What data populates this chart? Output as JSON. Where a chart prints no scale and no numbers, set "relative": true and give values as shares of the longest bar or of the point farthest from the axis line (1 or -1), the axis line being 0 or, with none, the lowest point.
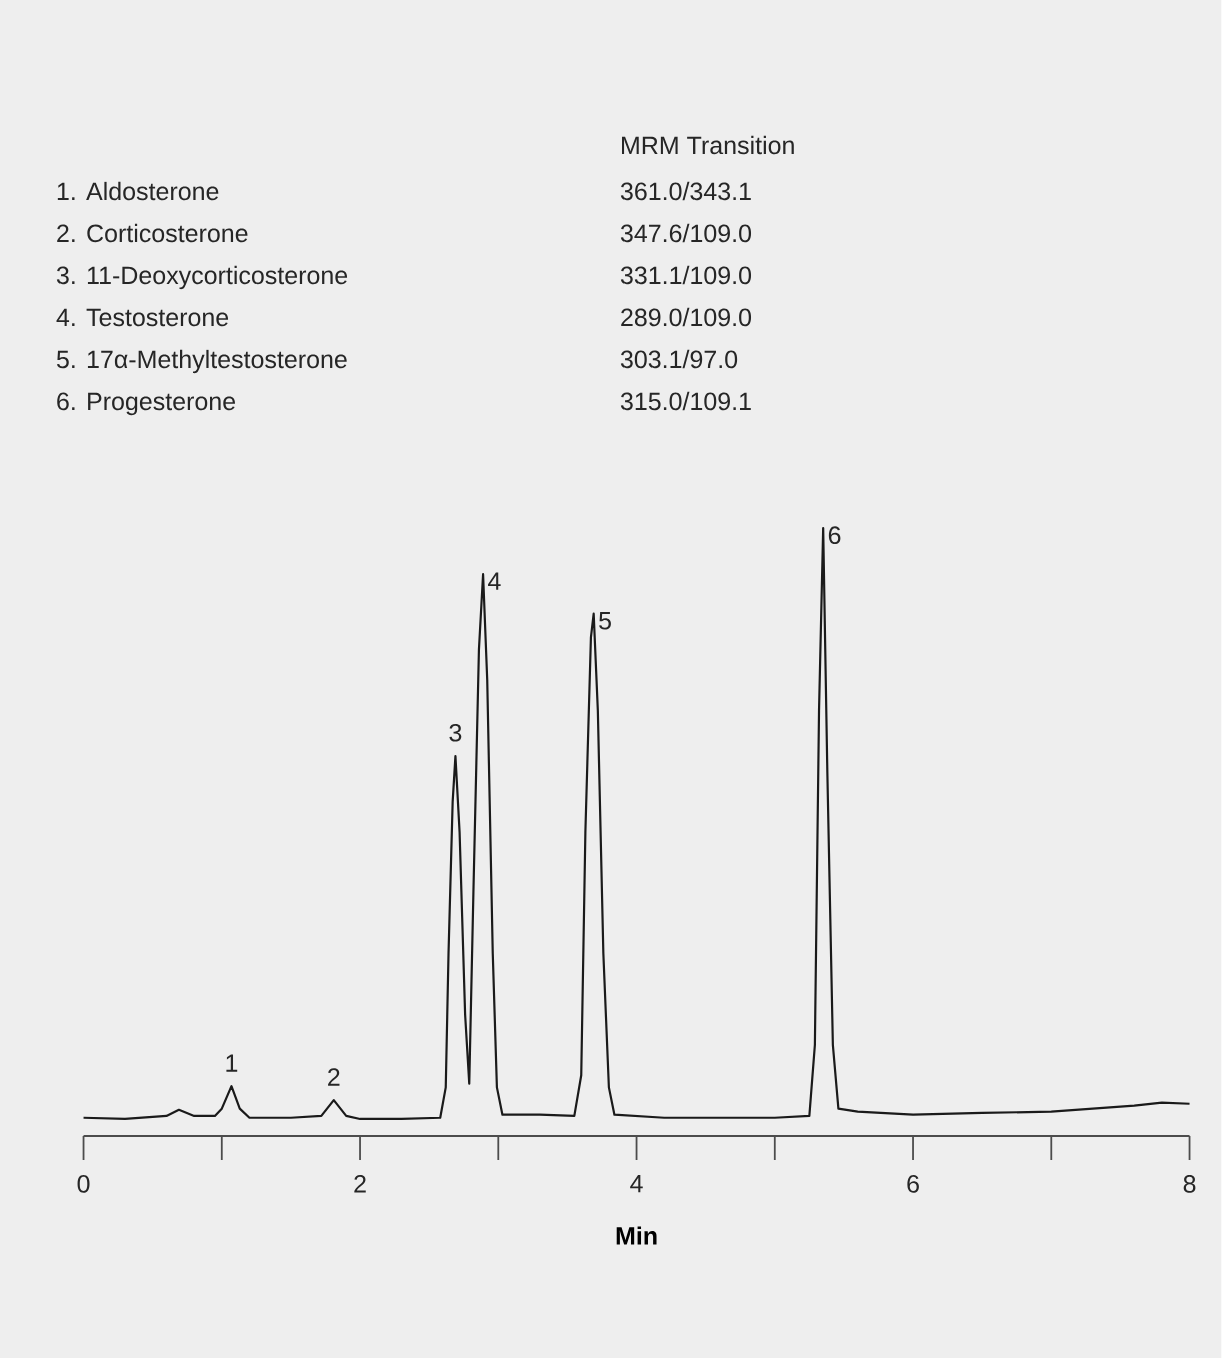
{
  "chart_data": {
    "type": "line",
    "relative": true,
    "xlabel": "Min",
    "xlim": [
      0,
      8
    ],
    "xticks": [
      0,
      {
        "value": 1,
        "label": null
      },
      2,
      {
        "value": 3,
        "label": null
      },
      4,
      {
        "value": 5,
        "label": null
      },
      6,
      {
        "value": 7,
        "label": null
      },
      8
    ],
    "grid": false,
    "series": [
      {
        "color": "#1a1a1a",
        "x": [
          0.0,
          0.3,
          0.6,
          0.69,
          0.8,
          0.95,
          1.0,
          1.07,
          1.13,
          1.2,
          1.5,
          1.72,
          1.81,
          1.9,
          2.0,
          2.3,
          2.58,
          2.62,
          2.64,
          2.67,
          2.69,
          2.72,
          2.76,
          2.79,
          2.82,
          2.86,
          2.89,
          2.92,
          2.96,
          2.99,
          3.03,
          3.3,
          3.55,
          3.6,
          3.63,
          3.67,
          3.69,
          3.72,
          3.76,
          3.8,
          3.84,
          4.2,
          4.6,
          5.0,
          5.25,
          5.29,
          5.32,
          5.35,
          5.38,
          5.42,
          5.46,
          5.6,
          6.0,
          6.5,
          7.0,
          7.3,
          7.6,
          7.8,
          8.0
        ],
        "values": [
          0.03,
          0.028,
          0.033,
          0.043,
          0.033,
          0.033,
          0.045,
          0.082,
          0.045,
          0.03,
          0.03,
          0.033,
          0.059,
          0.033,
          0.028,
          0.028,
          0.03,
          0.08,
          0.3,
          0.55,
          0.625,
          0.5,
          0.2,
          0.086,
          0.4,
          0.8,
          0.924,
          0.75,
          0.3,
          0.08,
          0.035,
          0.035,
          0.033,
          0.1,
          0.5,
          0.82,
          0.859,
          0.7,
          0.3,
          0.08,
          0.035,
          0.03,
          0.03,
          0.03,
          0.033,
          0.15,
          0.7,
          1.0,
          0.6,
          0.15,
          0.045,
          0.04,
          0.035,
          0.038,
          0.04,
          0.045,
          0.05,
          0.055,
          0.053
        ]
      }
    ],
    "annotations": [
      "MRM Transition",
      "1. Aldosterone",
      "361.0/343.1",
      "2. Corticosterone",
      "347.6/109.0",
      "3. 11-Deoxycorticosterone",
      "331.1/109.0",
      "4. Testosterone",
      "289.0/109.0",
      "5. 17α-Methyltestosterone",
      "303.1/97.0",
      "6. Progesterone",
      "315.0/109.1",
      {
        "text": "1",
        "x": 1.07,
        "y": 0.082
      },
      {
        "text": "2",
        "x": 1.81,
        "y": 0.059
      },
      {
        "text": "3",
        "x": 2.69,
        "y": 0.625
      },
      {
        "text": "4",
        "x": 2.89,
        "y": 0.924
      },
      {
        "text": "5",
        "x": 3.69,
        "y": 0.859
      },
      {
        "text": "6",
        "x": 5.35,
        "y": 1.0
      }
    ]
  }
}
